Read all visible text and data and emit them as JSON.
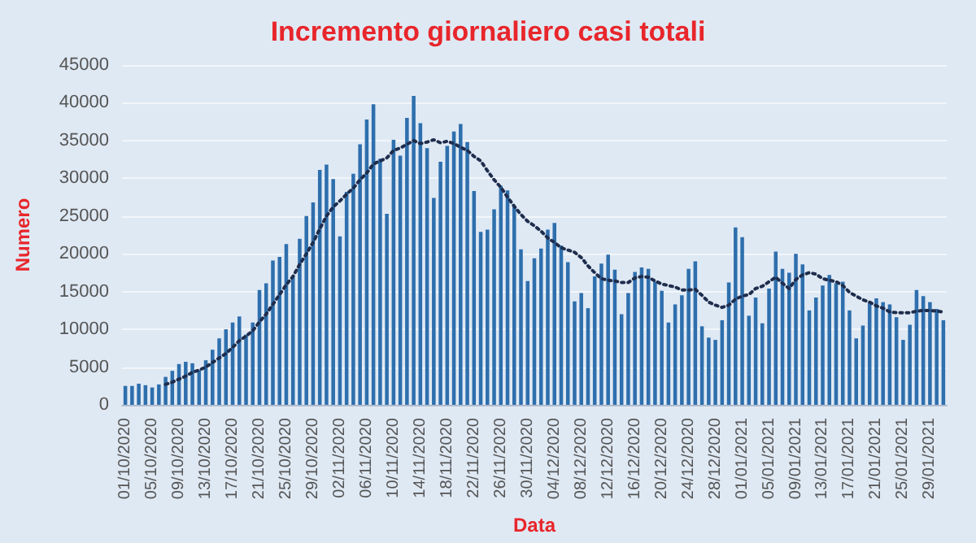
{
  "chart_data": {
    "type": "bar",
    "title": "Incremento giornaliero casi totali",
    "xlabel": "Data",
    "ylabel": "Numero",
    "categories": [
      "01/10/2020",
      null,
      null,
      null,
      "05/10/2020",
      null,
      null,
      null,
      "09/10/2020",
      null,
      null,
      null,
      "13/10/2020",
      null,
      null,
      null,
      "17/10/2020",
      null,
      null,
      null,
      "21/10/2020",
      null,
      null,
      null,
      "25/10/2020",
      null,
      null,
      null,
      "29/10/2020",
      null,
      null,
      null,
      "02/11/2020",
      null,
      null,
      null,
      "06/11/2020",
      null,
      null,
      null,
      "10/11/2020",
      null,
      null,
      null,
      "14/11/2020",
      null,
      null,
      null,
      "18/11/2020",
      null,
      null,
      null,
      "22/11/2020",
      null,
      null,
      null,
      "26/11/2020",
      null,
      null,
      null,
      "30/11/2020",
      null,
      null,
      null,
      "04/12/2020",
      null,
      null,
      null,
      "08/12/2020",
      null,
      null,
      null,
      "12/12/2020",
      null,
      null,
      null,
      "16/12/2020",
      null,
      null,
      null,
      "20/12/2020",
      null,
      null,
      null,
      "24/12/2020",
      null,
      null,
      null,
      "28/12/2020",
      null,
      null,
      null,
      "01/01/2021",
      null,
      null,
      null,
      "05/01/2021",
      null,
      null,
      null,
      "09/01/2021",
      null,
      null,
      null,
      "13/01/2021",
      null,
      null,
      null,
      "17/01/2021",
      null,
      null,
      null,
      "21/01/2021",
      null,
      null,
      null,
      "25/01/2021",
      null,
      null,
      null,
      "29/01/2021",
      null,
      null
    ],
    "series": [
      {
        "color": "#2e6fad",
        "values": [
          2500,
          2500,
          2800,
          2600,
          2300,
          2700,
          3700,
          4500,
          5400,
          5700,
          5500,
          4600,
          5900,
          7300,
          8800,
          10000,
          10900,
          11700,
          9300,
          10900,
          15200,
          16100,
          19100,
          19600,
          21300,
          17000,
          22000,
          25000,
          26800,
          31100,
          31800,
          29900,
          22300,
          28200,
          30600,
          34500,
          37800,
          39800,
          32600,
          25300,
          35100,
          33000,
          38000,
          40900,
          37300,
          34000,
          27400,
          32200,
          34300,
          36200,
          37200,
          34800,
          28300,
          22900,
          23200,
          25900,
          29000,
          28400,
          26300,
          20600,
          16400,
          19400,
          20700,
          23200,
          24100,
          21100,
          18900,
          13700,
          14800,
          12800,
          17000,
          18700,
          19900,
          17900,
          12000,
          14800,
          17600,
          18200,
          18000,
          16300,
          15100,
          10900,
          13300,
          14500,
          18000,
          19000,
          10400,
          8900,
          8600,
          11200,
          16200,
          23500,
          22200,
          11800,
          14200,
          10800,
          15400,
          20300,
          18000,
          17500,
          20000,
          18600,
          12500,
          14200,
          15800,
          17200,
          16100,
          16300,
          12500,
          8800,
          10500,
          13600,
          14100,
          13600,
          13300,
          11600,
          8600,
          10600,
          15200,
          14400,
          13600,
          12700,
          11200
        ]
      },
      {
        "type": "line",
        "color": "#1f2d4d",
        "line_style": "dotted",
        "values": [
          null,
          null,
          null,
          null,
          null,
          null,
          2700,
          3000,
          3400,
          3800,
          4300,
          4600,
          5000,
          5600,
          6200,
          6800,
          7600,
          8500,
          9100,
          9800,
          11000,
          12000,
          13300,
          14600,
          15900,
          17000,
          18600,
          20000,
          21500,
          23300,
          25000,
          26200,
          27000,
          27900,
          28700,
          29800,
          30700,
          31900,
          32300,
          32700,
          33700,
          34000,
          34500,
          35000,
          34600,
          34800,
          35100,
          34700,
          34900,
          34600,
          34100,
          33700,
          32900,
          32300,
          31000,
          29800,
          28800,
          27500,
          26300,
          25200,
          24300,
          23700,
          23000,
          22100,
          21500,
          20800,
          20500,
          20200,
          19500,
          18400,
          17500,
          16700,
          16500,
          16400,
          16200,
          16200,
          16800,
          17000,
          16900,
          16400,
          16000,
          15800,
          15600,
          15200,
          15200,
          15300,
          14500,
          13600,
          13200,
          12900,
          13200,
          14000,
          14400,
          14600,
          15400,
          15700,
          16300,
          16900,
          16100,
          15400,
          16600,
          17200,
          17500,
          17300,
          16700,
          16500,
          16300,
          15800,
          14900,
          14400,
          13900,
          13600,
          13100,
          12800,
          12300,
          12200,
          12200,
          12200,
          12400,
          12500,
          12500,
          12400,
          12300
        ]
      }
    ],
    "ylim": [
      0,
      45000
    ],
    "yticks": [
      0,
      5000,
      10000,
      15000,
      20000,
      25000,
      30000,
      35000,
      40000,
      45000
    ],
    "grid": "y",
    "marker": "none"
  }
}
